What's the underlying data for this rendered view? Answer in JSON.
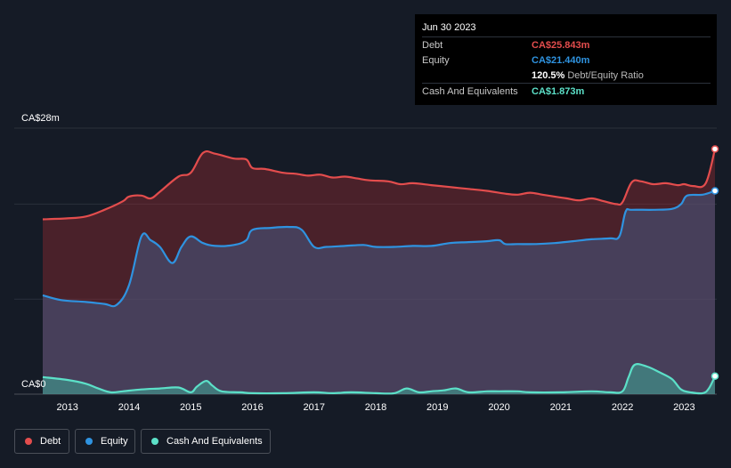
{
  "tooltip": {
    "date": "Jun 30 2023",
    "debt_label": "Debt",
    "debt_value": "CA$25.843m",
    "equity_label": "Equity",
    "equity_value": "CA$21.440m",
    "ratio_value": "120.5%",
    "ratio_label": "Debt/Equity Ratio",
    "cash_label": "Cash And Equivalents",
    "cash_value": "CA$1.873m"
  },
  "legend": {
    "debt": "Debt",
    "equity": "Equity",
    "cash": "Cash And Equivalents"
  },
  "colors": {
    "debt": "#e34d4d",
    "equity": "#2f93e0",
    "cash": "#5ce0c8",
    "background": "#151b26"
  },
  "chart_data": {
    "type": "area",
    "y_unit": "CA$m",
    "ylim": [
      0,
      28
    ],
    "y_tick_labels": [
      "CA$0",
      "CA$28m"
    ],
    "x_tick_labels": [
      "2013",
      "2014",
      "2015",
      "2016",
      "2017",
      "2018",
      "2019",
      "2020",
      "2021",
      "2022",
      "2023"
    ],
    "xlim": [
      2012.6,
      2023.5
    ],
    "grid": true,
    "series": [
      {
        "name": "Debt",
        "points": [
          [
            2012.6,
            18.4
          ],
          [
            2013.0,
            18.5
          ],
          [
            2013.3,
            18.7
          ],
          [
            2013.6,
            19.4
          ],
          [
            2013.9,
            20.3
          ],
          [
            2014.0,
            20.8
          ],
          [
            2014.2,
            20.9
          ],
          [
            2014.35,
            20.6
          ],
          [
            2014.5,
            21.3
          ],
          [
            2014.8,
            22.9
          ],
          [
            2015.0,
            23.3
          ],
          [
            2015.2,
            25.4
          ],
          [
            2015.4,
            25.3
          ],
          [
            2015.7,
            24.8
          ],
          [
            2015.9,
            24.7
          ],
          [
            2016.0,
            23.8
          ],
          [
            2016.2,
            23.7
          ],
          [
            2016.5,
            23.3
          ],
          [
            2016.7,
            23.2
          ],
          [
            2016.9,
            23.0
          ],
          [
            2017.1,
            23.1
          ],
          [
            2017.3,
            22.8
          ],
          [
            2017.5,
            22.9
          ],
          [
            2017.7,
            22.7
          ],
          [
            2017.9,
            22.5
          ],
          [
            2018.2,
            22.4
          ],
          [
            2018.4,
            22.1
          ],
          [
            2018.6,
            22.2
          ],
          [
            2018.9,
            22.0
          ],
          [
            2019.2,
            21.8
          ],
          [
            2019.5,
            21.6
          ],
          [
            2019.8,
            21.4
          ],
          [
            2020.1,
            21.1
          ],
          [
            2020.3,
            21.0
          ],
          [
            2020.5,
            21.2
          ],
          [
            2020.7,
            21.0
          ],
          [
            2020.9,
            20.8
          ],
          [
            2021.1,
            20.6
          ],
          [
            2021.3,
            20.4
          ],
          [
            2021.5,
            20.6
          ],
          [
            2021.7,
            20.3
          ],
          [
            2021.9,
            20.0
          ],
          [
            2022.0,
            20.2
          ],
          [
            2022.15,
            22.3
          ],
          [
            2022.3,
            22.4
          ],
          [
            2022.5,
            22.1
          ],
          [
            2022.7,
            22.2
          ],
          [
            2022.9,
            22.0
          ],
          [
            2023.0,
            22.1
          ],
          [
            2023.15,
            21.9
          ],
          [
            2023.35,
            22.2
          ],
          [
            2023.5,
            25.8
          ]
        ]
      },
      {
        "name": "Equity",
        "points": [
          [
            2012.6,
            10.4
          ],
          [
            2012.9,
            9.9
          ],
          [
            2013.3,
            9.7
          ],
          [
            2013.6,
            9.5
          ],
          [
            2013.8,
            9.4
          ],
          [
            2014.0,
            11.5
          ],
          [
            2014.2,
            16.6
          ],
          [
            2014.35,
            16.2
          ],
          [
            2014.5,
            15.5
          ],
          [
            2014.7,
            13.8
          ],
          [
            2014.85,
            15.5
          ],
          [
            2015.0,
            16.6
          ],
          [
            2015.2,
            15.9
          ],
          [
            2015.4,
            15.6
          ],
          [
            2015.7,
            15.7
          ],
          [
            2015.9,
            16.2
          ],
          [
            2016.0,
            17.3
          ],
          [
            2016.3,
            17.5
          ],
          [
            2016.6,
            17.6
          ],
          [
            2016.8,
            17.3
          ],
          [
            2017.0,
            15.5
          ],
          [
            2017.2,
            15.5
          ],
          [
            2017.5,
            15.6
          ],
          [
            2017.8,
            15.7
          ],
          [
            2018.0,
            15.5
          ],
          [
            2018.3,
            15.5
          ],
          [
            2018.6,
            15.6
          ],
          [
            2018.9,
            15.6
          ],
          [
            2019.2,
            15.9
          ],
          [
            2019.5,
            16.0
          ],
          [
            2019.8,
            16.1
          ],
          [
            2020.0,
            16.2
          ],
          [
            2020.1,
            15.8
          ],
          [
            2020.3,
            15.8
          ],
          [
            2020.6,
            15.8
          ],
          [
            2020.9,
            15.9
          ],
          [
            2021.2,
            16.1
          ],
          [
            2021.5,
            16.3
          ],
          [
            2021.8,
            16.4
          ],
          [
            2021.95,
            16.6
          ],
          [
            2022.05,
            19.2
          ],
          [
            2022.15,
            19.4
          ],
          [
            2022.5,
            19.4
          ],
          [
            2022.8,
            19.5
          ],
          [
            2022.95,
            20.0
          ],
          [
            2023.05,
            20.9
          ],
          [
            2023.3,
            21.0
          ],
          [
            2023.5,
            21.4
          ]
        ]
      },
      {
        "name": "Cash And Equivalents",
        "points": [
          [
            2012.6,
            1.8
          ],
          [
            2013.0,
            1.5
          ],
          [
            2013.3,
            1.1
          ],
          [
            2013.5,
            0.6
          ],
          [
            2013.7,
            0.2
          ],
          [
            2013.9,
            0.3
          ],
          [
            2014.2,
            0.5
          ],
          [
            2014.5,
            0.6
          ],
          [
            2014.8,
            0.7
          ],
          [
            2015.0,
            0.2
          ],
          [
            2015.1,
            0.8
          ],
          [
            2015.25,
            1.4
          ],
          [
            2015.35,
            0.9
          ],
          [
            2015.5,
            0.3
          ],
          [
            2015.8,
            0.2
          ],
          [
            2016.0,
            0.1
          ],
          [
            2016.5,
            0.1
          ],
          [
            2017.0,
            0.2
          ],
          [
            2017.3,
            0.1
          ],
          [
            2017.6,
            0.2
          ],
          [
            2018.0,
            0.1
          ],
          [
            2018.3,
            0.1
          ],
          [
            2018.5,
            0.6
          ],
          [
            2018.7,
            0.2
          ],
          [
            2018.9,
            0.3
          ],
          [
            2019.1,
            0.4
          ],
          [
            2019.3,
            0.6
          ],
          [
            2019.5,
            0.2
          ],
          [
            2019.8,
            0.3
          ],
          [
            2020.0,
            0.3
          ],
          [
            2020.3,
            0.3
          ],
          [
            2020.5,
            0.2
          ],
          [
            2021.0,
            0.2
          ],
          [
            2021.5,
            0.3
          ],
          [
            2021.8,
            0.2
          ],
          [
            2022.0,
            0.3
          ],
          [
            2022.1,
            1.8
          ],
          [
            2022.2,
            3.1
          ],
          [
            2022.4,
            2.9
          ],
          [
            2022.6,
            2.3
          ],
          [
            2022.8,
            1.6
          ],
          [
            2022.95,
            0.5
          ],
          [
            2023.1,
            0.2
          ],
          [
            2023.3,
            0.1
          ],
          [
            2023.4,
            0.6
          ],
          [
            2023.5,
            1.9
          ]
        ]
      }
    ]
  }
}
